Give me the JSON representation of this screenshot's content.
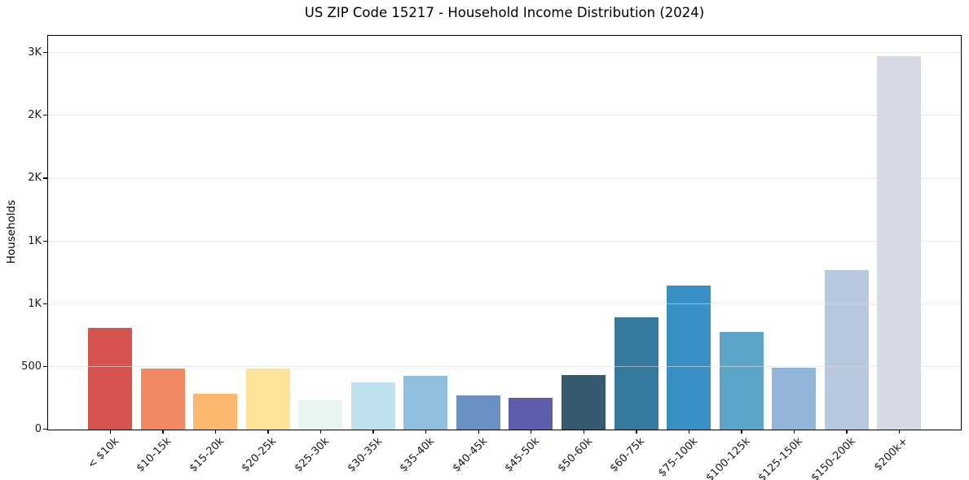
{
  "chart_data": {
    "type": "bar",
    "title": "US ZIP Code 15217 - Household Income Distribution (2024)",
    "xlabel": "",
    "ylabel": "Households",
    "ylim": [
      0,
      3130
    ],
    "grid": true,
    "legend": false,
    "categories": [
      "< $10k",
      "$10-15k",
      "$15-20k",
      "$20-25k",
      "$25-30k",
      "$30-35k",
      "$35-40k",
      "$40-45k",
      "$45-50k",
      "$50-60k",
      "$60-75k",
      "$75-100k",
      "$100-125k",
      "$125-150k",
      "$150-200k",
      "$200k+"
    ],
    "values": [
      812,
      488,
      288,
      488,
      230,
      378,
      430,
      275,
      250,
      437,
      895,
      1145,
      775,
      495,
      1268,
      2975
    ],
    "bar_colors": [
      "#d5544f",
      "#f18a64",
      "#fab871",
      "#fde49a",
      "#e7f4f0",
      "#bfe1ed",
      "#90bedd",
      "#6a90c4",
      "#5e5dab",
      "#355a70",
      "#36799f",
      "#3990c4",
      "#5da4c9",
      "#93b6d8",
      "#b8c9de",
      "#d7d9e4"
    ],
    "yticks": [
      {
        "value": 0,
        "label": "0"
      },
      {
        "value": 500,
        "label": "500"
      },
      {
        "value": 1000,
        "label": "1K"
      },
      {
        "value": 1500,
        "label": "1K"
      },
      {
        "value": 2000,
        "label": "2K"
      },
      {
        "value": 2500,
        "label": "2K"
      },
      {
        "value": 3000,
        "label": "3K"
      }
    ],
    "axis_color": "#000000",
    "grid_color": "rgba(220,220,220,0.6)",
    "text_color": "#1a1a1a"
  }
}
